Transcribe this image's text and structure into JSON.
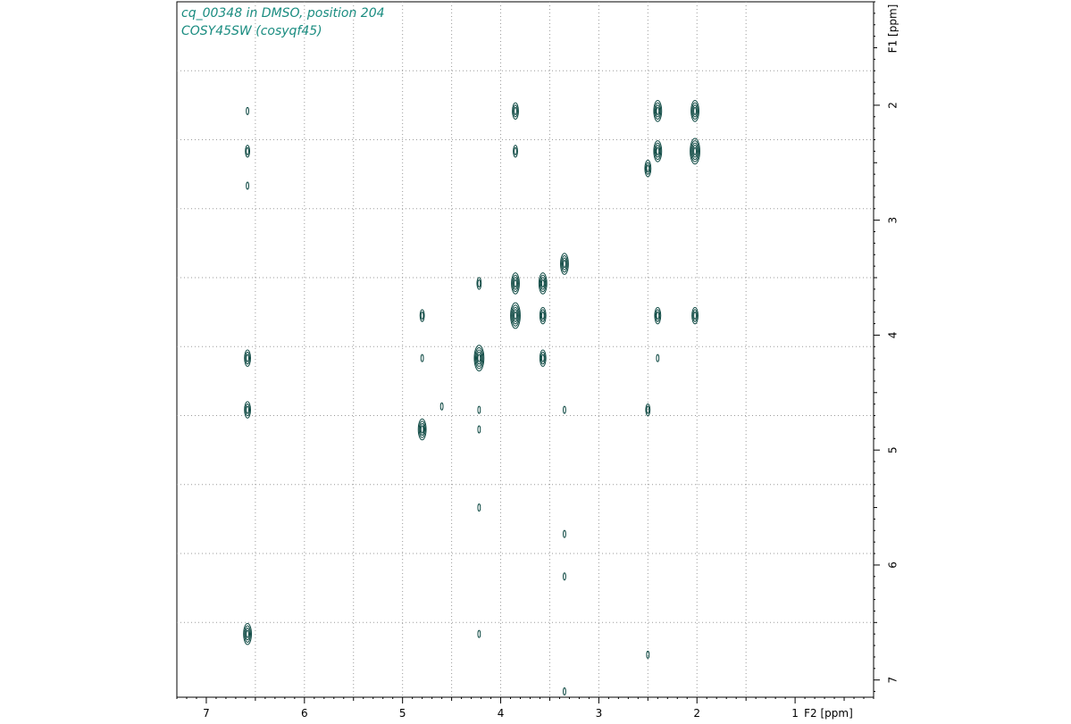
{
  "header": {
    "title_line1": "cq_00348 in DMSO, position 204",
    "title_line2": "COSY45SW (cosyqf45)"
  },
  "chart_data": {
    "type": "contour",
    "x_axis": {
      "label": "F2 [ppm]",
      "range": [
        7.3,
        0.2
      ],
      "ticks": [
        7,
        6,
        5,
        4,
        3,
        2,
        1
      ],
      "reversed": true
    },
    "y_axis": {
      "label": "F1 [ppm]",
      "range": [
        1.1,
        7.15
      ],
      "ticks": [
        2,
        3,
        4,
        5,
        6,
        7
      ],
      "position": "right"
    },
    "grid": {
      "style": "dotted",
      "x": [
        6.5,
        6.0,
        5.5,
        5.0,
        4.5,
        4.0,
        3.5,
        3.0,
        2.5,
        2.0,
        1.5
      ],
      "y": [
        1.7,
        2.3,
        2.9,
        3.5,
        4.1,
        4.7,
        5.3,
        5.9,
        6.5
      ]
    },
    "contour_color": "#0f4a44",
    "peaks": [
      {
        "x": 6.58,
        "y": 2.05,
        "levels": 1
      },
      {
        "x": 6.58,
        "y": 2.4,
        "levels": 2
      },
      {
        "x": 6.58,
        "y": 2.7,
        "levels": 1
      },
      {
        "x": 6.58,
        "y": 4.2,
        "levels": 3
      },
      {
        "x": 6.58,
        "y": 4.65,
        "levels": 3
      },
      {
        "x": 6.58,
        "y": 6.6,
        "levels": 4
      },
      {
        "x": 3.85,
        "y": 2.05,
        "levels": 3
      },
      {
        "x": 3.85,
        "y": 2.4,
        "levels": 2
      },
      {
        "x": 2.4,
        "y": 2.05,
        "levels": 4
      },
      {
        "x": 2.4,
        "y": 2.4,
        "levels": 4
      },
      {
        "x": 2.02,
        "y": 2.05,
        "levels": 4
      },
      {
        "x": 2.02,
        "y": 2.4,
        "levels": 5
      },
      {
        "x": 2.5,
        "y": 2.55,
        "levels": 3
      },
      {
        "x": 3.35,
        "y": 3.38,
        "levels": 4
      },
      {
        "x": 4.22,
        "y": 3.55,
        "levels": 2
      },
      {
        "x": 3.85,
        "y": 3.55,
        "levels": 4
      },
      {
        "x": 3.57,
        "y": 3.55,
        "levels": 4
      },
      {
        "x": 4.8,
        "y": 3.83,
        "levels": 2
      },
      {
        "x": 3.85,
        "y": 3.83,
        "levels": 5
      },
      {
        "x": 3.57,
        "y": 3.83,
        "levels": 3
      },
      {
        "x": 2.4,
        "y": 3.83,
        "levels": 3
      },
      {
        "x": 2.02,
        "y": 3.83,
        "levels": 3
      },
      {
        "x": 4.8,
        "y": 4.2,
        "levels": 1
      },
      {
        "x": 4.22,
        "y": 4.2,
        "levels": 5
      },
      {
        "x": 3.57,
        "y": 4.2,
        "levels": 3
      },
      {
        "x": 2.4,
        "y": 4.2,
        "levels": 1
      },
      {
        "x": 4.6,
        "y": 4.62,
        "levels": 1
      },
      {
        "x": 4.22,
        "y": 4.65,
        "levels": 1
      },
      {
        "x": 3.35,
        "y": 4.65,
        "levels": 1
      },
      {
        "x": 2.5,
        "y": 4.65,
        "levels": 2
      },
      {
        "x": 4.8,
        "y": 4.82,
        "levels": 4
      },
      {
        "x": 4.22,
        "y": 4.82,
        "levels": 1
      },
      {
        "x": 4.22,
        "y": 5.5,
        "levels": 1
      },
      {
        "x": 3.35,
        "y": 5.73,
        "levels": 1
      },
      {
        "x": 3.35,
        "y": 6.1,
        "levels": 1
      },
      {
        "x": 4.22,
        "y": 6.6,
        "levels": 1
      },
      {
        "x": 2.5,
        "y": 6.78,
        "levels": 1
      },
      {
        "x": 3.35,
        "y": 7.1,
        "levels": 1
      }
    ]
  }
}
